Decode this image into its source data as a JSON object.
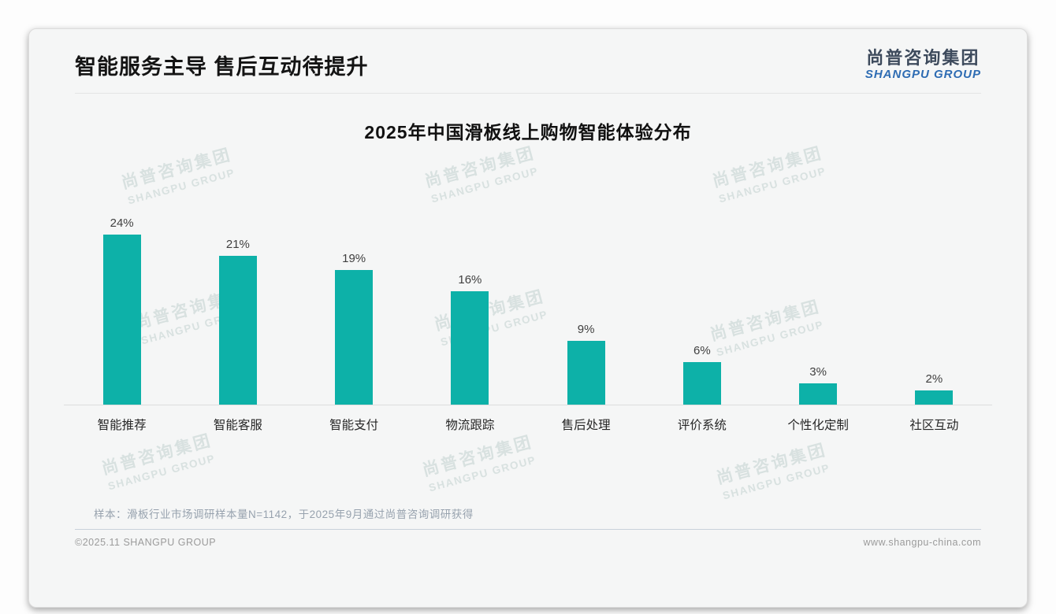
{
  "header": {
    "title": "智能服务主导 售后互动待提升"
  },
  "logo": {
    "name_cn": "尚普咨询集团",
    "name_en": "SHANGPU GROUP"
  },
  "watermark": {
    "line1": "尚普咨询集团",
    "line2": "SHANGPU GROUP"
  },
  "chart_data": {
    "type": "bar",
    "title": "2025年中国滑板线上购物智能体验分布",
    "categories": [
      "智能推荐",
      "智能客服",
      "智能支付",
      "物流跟踪",
      "售后处理",
      "评价系统",
      "个性化定制",
      "社区互动"
    ],
    "values": [
      24,
      21,
      19,
      16,
      9,
      6,
      3,
      2
    ],
    "value_labels": [
      "24%",
      "21%",
      "19%",
      "16%",
      "9%",
      "6%",
      "3%",
      "2%"
    ],
    "unit": "percent",
    "xlabel": "",
    "ylabel": "",
    "ylim": [
      0,
      25
    ],
    "grid": false,
    "legend": false,
    "bar_color": "#0db1a8"
  },
  "note": "样本：滑板行业市场调研样本量N=1142，于2025年9月通过尚普咨询调研获得",
  "footer": {
    "copyright": "©2025.11 SHANGPU GROUP",
    "website": "www.shangpu-china.com"
  },
  "colors": {
    "bar_teal": "#0db1a8",
    "logo_blue": "#2e6cb3",
    "logo_dark": "#3d4a5c",
    "card_bg": "#f5f6f6",
    "note_gray": "#97a2ae"
  }
}
